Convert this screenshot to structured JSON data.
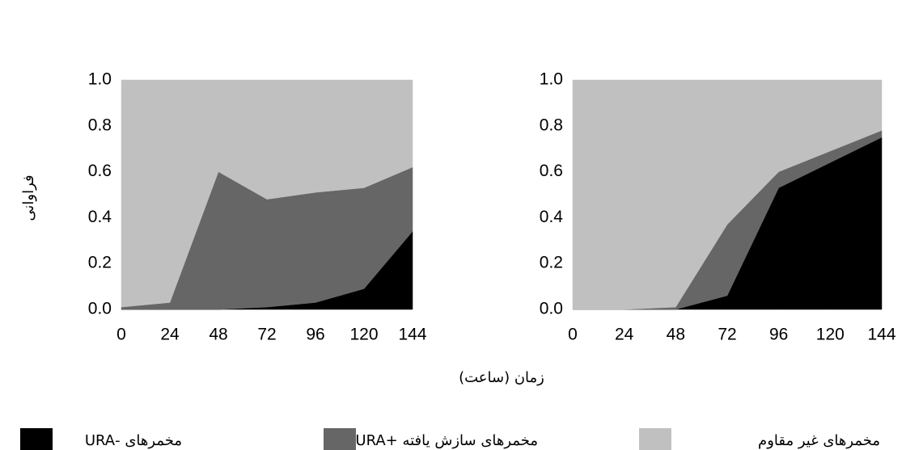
{
  "chart_data": [
    {
      "type": "area",
      "stacked": true,
      "xlabel": "زمان (ساعت)",
      "ylabel": "فراوانی",
      "x": [
        0,
        24,
        48,
        72,
        96,
        120,
        144
      ],
      "xlim": [
        0,
        144
      ],
      "xticks": [
        0,
        24,
        48,
        72,
        96,
        120,
        144
      ],
      "ylim": [
        0,
        1
      ],
      "yticks": [
        {
          "value": 0,
          "label": "0.0"
        },
        {
          "value": 0.2,
          "label": "0.2"
        },
        {
          "value": 0.4,
          "label": "0.4"
        },
        {
          "value": 0.6,
          "label": "0.6"
        },
        {
          "value": 0.8,
          "label": "0.8"
        },
        {
          "value": 1,
          "label": "1.0"
        }
      ],
      "series": [
        {
          "name": "مخمرهای -URA",
          "color": "#000000",
          "values": [
            0,
            0,
            0,
            0.01,
            0.03,
            0.09,
            0.34
          ]
        },
        {
          "name": "مخمرهای سازش یافته +URA",
          "color": "#666666",
          "values": [
            0.01,
            0.03,
            0.6,
            0.47,
            0.48,
            0.44,
            0.28
          ]
        },
        {
          "name": "مخمرهای غیر مقاوم",
          "color": "#c0c0c0",
          "values": [
            0.99,
            0.97,
            0.4,
            0.52,
            0.49,
            0.47,
            0.38
          ]
        }
      ]
    },
    {
      "type": "area",
      "stacked": true,
      "x": [
        0,
        24,
        48,
        72,
        96,
        120,
        144
      ],
      "xlim": [
        0,
        144
      ],
      "xticks": [
        0,
        24,
        48,
        72,
        96,
        120,
        144
      ],
      "ylim": [
        0,
        1
      ],
      "yticks": [
        {
          "value": 0,
          "label": "0.0"
        },
        {
          "value": 0.2,
          "label": "0.2"
        },
        {
          "value": 0.4,
          "label": "0.4"
        },
        {
          "value": 0.6,
          "label": "0.6"
        },
        {
          "value": 0.8,
          "label": "0.8"
        },
        {
          "value": 1,
          "label": "1.0"
        }
      ],
      "series": [
        {
          "color": "#000000",
          "values": [
            0,
            0,
            0,
            0.06,
            0.53,
            0.64,
            0.75
          ]
        },
        {
          "color": "#666666",
          "values": [
            0,
            0,
            0.01,
            0.31,
            0.07,
            0.05,
            0.03
          ]
        },
        {
          "color": "#c0c0c0",
          "values": [
            1,
            1,
            0.99,
            0.63,
            0.4,
            0.31,
            0.22
          ]
        }
      ]
    }
  ]
}
